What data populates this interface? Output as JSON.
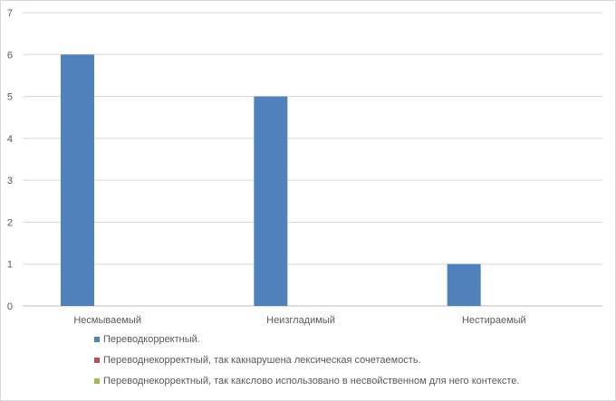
{
  "chart_data": {
    "type": "bar",
    "categories": [
      "Несмываемый",
      "Неизгладимый",
      "Нестираемый"
    ],
    "series": [
      {
        "name": "Переводкорректный.",
        "color": "#4f81bd",
        "values": [
          6,
          5,
          1
        ]
      },
      {
        "name": "Переводнекорректный, так какнарушена лексическая сочетаемость.",
        "color": "#c0504d",
        "values": [
          0,
          0,
          0
        ]
      },
      {
        "name": "Переводнекорректный, так какслово использовано в несвойственном для него контексте.",
        "color": "#9bbb59",
        "values": [
          0,
          0,
          0
        ]
      }
    ],
    "ylim": [
      0,
      7
    ],
    "yticks": [
      0,
      1,
      2,
      3,
      4,
      5,
      6,
      7
    ],
    "grid": true,
    "legend_position": "bottom",
    "title": "",
    "xlabel": "",
    "ylabel": ""
  }
}
